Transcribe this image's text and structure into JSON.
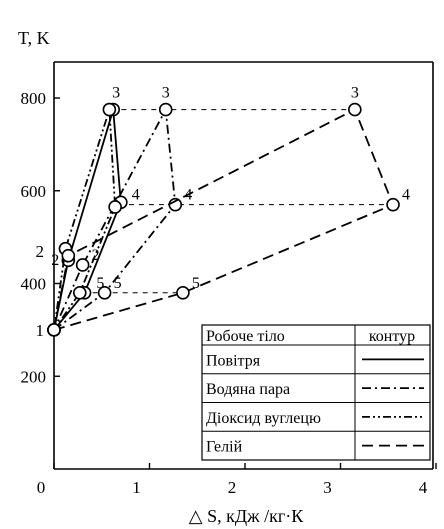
{
  "chart_data": {
    "type": "line",
    "ylabel": "T, K",
    "xlabel": "△ S, кДж /кг·К",
    "xlim": [
      0,
      4.2
    ],
    "ylim": [
      0,
      900
    ],
    "x_ticks": [
      0,
      1,
      2,
      3,
      4
    ],
    "x_tick_labels": [
      "0",
      "1",
      "2",
      "3",
      "4"
    ],
    "y_ticks": [
      200,
      400,
      600,
      800
    ],
    "y_tick_labels": [
      "200",
      "400",
      "600",
      "800"
    ],
    "y_extra_labels": [
      {
        "y": 300,
        "label": "1"
      },
      {
        "y": 470,
        "label": "2"
      }
    ],
    "grid": false,
    "legend": {
      "position": "bottom-right",
      "header_left": "Робоче тіло",
      "header_right": "контур"
    },
    "series": [
      {
        "name": "Повітря",
        "dash": "solid",
        "points": [
          {
            "x": 0.0,
            "y": 300,
            "label": "1"
          },
          {
            "x": 0.15,
            "y": 450,
            "label": ""
          },
          {
            "x": 0.62,
            "y": 775,
            "label": ""
          },
          {
            "x": 0.7,
            "y": 575,
            "label": ""
          },
          {
            "x": 0.32,
            "y": 380,
            "label": ""
          },
          {
            "x": 0.0,
            "y": 300,
            "label": ""
          }
        ]
      },
      {
        "name": "Водяна пара",
        "dash": "dashdot",
        "points": [
          {
            "x": 0.0,
            "y": 300,
            "label": ""
          },
          {
            "x": 0.53,
            "y": 380,
            "label": "5"
          },
          {
            "x": 1.27,
            "y": 570,
            "label": "4"
          },
          {
            "x": 1.17,
            "y": 775,
            "label": "3"
          },
          {
            "x": 0.3,
            "y": 440,
            "label": "2"
          },
          {
            "x": 0.0,
            "y": 300,
            "label": ""
          }
        ]
      },
      {
        "name": "Діоксид вуглецю",
        "dash": "dashdotdot",
        "points": [
          {
            "x": 0.0,
            "y": 300,
            "label": ""
          },
          {
            "x": 0.12,
            "y": 475,
            "label": ""
          },
          {
            "x": 0.58,
            "y": 775,
            "label": ""
          },
          {
            "x": 0.64,
            "y": 565,
            "label": ""
          },
          {
            "x": 0.27,
            "y": 380,
            "label": ""
          },
          {
            "x": 0.0,
            "y": 300,
            "label": ""
          }
        ]
      },
      {
        "name": "Гелій",
        "dash": "dashed",
        "points": [
          {
            "x": 0.0,
            "y": 300,
            "label": ""
          },
          {
            "x": 1.35,
            "y": 380,
            "label": "5"
          },
          {
            "x": 3.55,
            "y": 570,
            "label": "4"
          },
          {
            "x": 3.15,
            "y": 775,
            "label": "3"
          },
          {
            "x": 0.15,
            "y": 460,
            "label": ""
          },
          {
            "x": 0.0,
            "y": 300,
            "label": ""
          }
        ]
      }
    ],
    "reference_lines": [
      {
        "y": 775,
        "x_from": 0.6,
        "x_to": 3.15
      },
      {
        "y": 570,
        "x_from": 0.68,
        "x_to": 3.55
      },
      {
        "y": 380,
        "x_from": 0.3,
        "x_to": 1.35
      }
    ],
    "point_labels": [
      {
        "x": 0.65,
        "y": 775,
        "text": "3",
        "offset": "above"
      },
      {
        "x": 0.72,
        "y": 570,
        "text": "4",
        "offset": "right"
      },
      {
        "x": 0.35,
        "y": 380,
        "text": "5",
        "offset": "right"
      },
      {
        "x": 0.16,
        "y": 440,
        "text": "2",
        "offset": "left"
      }
    ]
  }
}
